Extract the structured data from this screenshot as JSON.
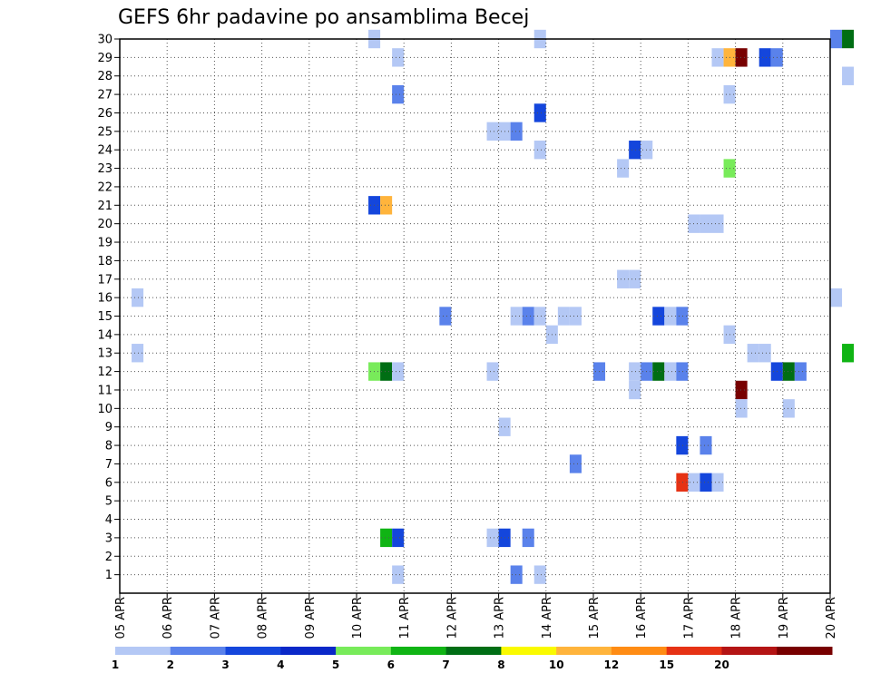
{
  "chart_data": {
    "type": "heatmap",
    "title": "GEFS 6hr padavine po ansamblima Becej",
    "y_ticks": [
      "1",
      "2",
      "3",
      "4",
      "5",
      "6",
      "7",
      "8",
      "9",
      "10",
      "11",
      "12",
      "13",
      "14",
      "15",
      "16",
      "17",
      "18",
      "19",
      "20",
      "21",
      "22",
      "23",
      "24",
      "25",
      "26",
      "27",
      "28",
      "29",
      "30"
    ],
    "x_ticks": [
      "05 APR",
      "06 APR",
      "07 APR",
      "08 APR",
      "09 APR",
      "10 APR",
      "11 APR",
      "12 APR",
      "13 APR",
      "14 APR",
      "15 APR",
      "16 APR",
      "17 APR",
      "18 APR",
      "19 APR",
      "20 APR"
    ],
    "ylim": [
      0,
      30
    ],
    "x_range": [
      "05 APR",
      "20 APR"
    ],
    "grid": "dotted",
    "colorbar": {
      "ticks": [
        "1",
        "2",
        "3",
        "4",
        "5",
        "6",
        "7",
        "8",
        "10",
        "12",
        "15",
        "20"
      ],
      "colors": [
        "#b4c8f5",
        "#5a82eb",
        "#1446dc",
        "#0a28c8",
        "#78eb5a",
        "#10b414",
        "#006e14",
        "#fafa00",
        "#ffb43c",
        "#ff8c14",
        "#e63214",
        "#b41414",
        "#780000"
      ]
    },
    "cells": [
      {
        "x": 5.25,
        "y": 30,
        "c": 1
      },
      {
        "x": 8.75,
        "y": 30,
        "c": 1
      },
      {
        "x": 15,
        "y": 30,
        "c": 2
      },
      {
        "x": 15.25,
        "y": 30,
        "c": 7
      },
      {
        "x": 5.75,
        "y": 29,
        "c": 1
      },
      {
        "x": 12.5,
        "y": 29,
        "c": 1
      },
      {
        "x": 12.75,
        "y": 29,
        "c": 9
      },
      {
        "x": 13,
        "y": 29,
        "c": 13
      },
      {
        "x": 13.5,
        "y": 29,
        "c": 3
      },
      {
        "x": 13.75,
        "y": 29,
        "c": 2
      },
      {
        "x": 15.25,
        "y": 28,
        "c": 1
      },
      {
        "x": 5.75,
        "y": 27,
        "c": 2
      },
      {
        "x": 12.75,
        "y": 27,
        "c": 1
      },
      {
        "x": 8.75,
        "y": 26,
        "c": 3
      },
      {
        "x": 7.75,
        "y": 25,
        "c": 1
      },
      {
        "x": 8,
        "y": 25,
        "c": 1
      },
      {
        "x": 8.25,
        "y": 25,
        "c": 2
      },
      {
        "x": 8.75,
        "y": 24,
        "c": 1
      },
      {
        "x": 10.75,
        "y": 24,
        "c": 3
      },
      {
        "x": 11,
        "y": 24,
        "c": 1
      },
      {
        "x": 10.5,
        "y": 23,
        "c": 1
      },
      {
        "x": 12.75,
        "y": 23,
        "c": 5
      },
      {
        "x": 5.25,
        "y": 21,
        "c": 3
      },
      {
        "x": 5.5,
        "y": 21,
        "c": 9
      },
      {
        "x": 12,
        "y": 20,
        "c": 1
      },
      {
        "x": 12.25,
        "y": 20,
        "c": 1
      },
      {
        "x": 12.5,
        "y": 20,
        "c": 1
      },
      {
        "x": 10.5,
        "y": 17,
        "c": 1
      },
      {
        "x": 10.75,
        "y": 17,
        "c": 1
      },
      {
        "x": 0.25,
        "y": 16,
        "c": 1
      },
      {
        "x": 15,
        "y": 16,
        "c": 1
      },
      {
        "x": 6.75,
        "y": 15,
        "c": 2
      },
      {
        "x": 8.25,
        "y": 15,
        "c": 1
      },
      {
        "x": 8.5,
        "y": 15,
        "c": 2
      },
      {
        "x": 8.75,
        "y": 15,
        "c": 1
      },
      {
        "x": 9.25,
        "y": 15,
        "c": 1
      },
      {
        "x": 9.5,
        "y": 15,
        "c": 1
      },
      {
        "x": 11.25,
        "y": 15,
        "c": 3
      },
      {
        "x": 11.5,
        "y": 15,
        "c": 1
      },
      {
        "x": 11.75,
        "y": 15,
        "c": 2
      },
      {
        "x": 9,
        "y": 14,
        "c": 1
      },
      {
        "x": 12.75,
        "y": 14,
        "c": 1
      },
      {
        "x": 0.25,
        "y": 13,
        "c": 1
      },
      {
        "x": 13.25,
        "y": 13,
        "c": 1
      },
      {
        "x": 13.5,
        "y": 13,
        "c": 1
      },
      {
        "x": 15.25,
        "y": 13,
        "c": 6
      },
      {
        "x": 5.25,
        "y": 12,
        "c": 5
      },
      {
        "x": 5.5,
        "y": 12,
        "c": 7
      },
      {
        "x": 5.75,
        "y": 12,
        "c": 1
      },
      {
        "x": 7.75,
        "y": 12,
        "c": 1
      },
      {
        "x": 10,
        "y": 12,
        "c": 2
      },
      {
        "x": 10.75,
        "y": 12,
        "c": 1
      },
      {
        "x": 11,
        "y": 12,
        "c": 2
      },
      {
        "x": 11.25,
        "y": 12,
        "c": 7
      },
      {
        "x": 11.5,
        "y": 12,
        "c": 1
      },
      {
        "x": 11.75,
        "y": 12,
        "c": 2
      },
      {
        "x": 13.75,
        "y": 12,
        "c": 3
      },
      {
        "x": 14,
        "y": 12,
        "c": 7
      },
      {
        "x": 14.25,
        "y": 12,
        "c": 2
      },
      {
        "x": 10.75,
        "y": 11,
        "c": 1
      },
      {
        "x": 13,
        "y": 11,
        "c": 13
      },
      {
        "x": 13,
        "y": 10,
        "c": 1
      },
      {
        "x": 14,
        "y": 10,
        "c": 1
      },
      {
        "x": 8,
        "y": 9,
        "c": 1
      },
      {
        "x": 11.75,
        "y": 8,
        "c": 3
      },
      {
        "x": 12.25,
        "y": 8,
        "c": 2
      },
      {
        "x": 9.5,
        "y": 7,
        "c": 2
      },
      {
        "x": 11.75,
        "y": 6,
        "c": 11
      },
      {
        "x": 12,
        "y": 6,
        "c": 1
      },
      {
        "x": 12.25,
        "y": 6,
        "c": 3
      },
      {
        "x": 12.5,
        "y": 6,
        "c": 1
      },
      {
        "x": 5.5,
        "y": 3,
        "c": 6
      },
      {
        "x": 5.75,
        "y": 3,
        "c": 3
      },
      {
        "x": 7.75,
        "y": 3,
        "c": 1
      },
      {
        "x": 8,
        "y": 3,
        "c": 3
      },
      {
        "x": 8.5,
        "y": 3,
        "c": 2
      },
      {
        "x": 5.75,
        "y": 1,
        "c": 1
      },
      {
        "x": 8.25,
        "y": 1,
        "c": 2
      },
      {
        "x": 8.75,
        "y": 1,
        "c": 1
      }
    ]
  }
}
